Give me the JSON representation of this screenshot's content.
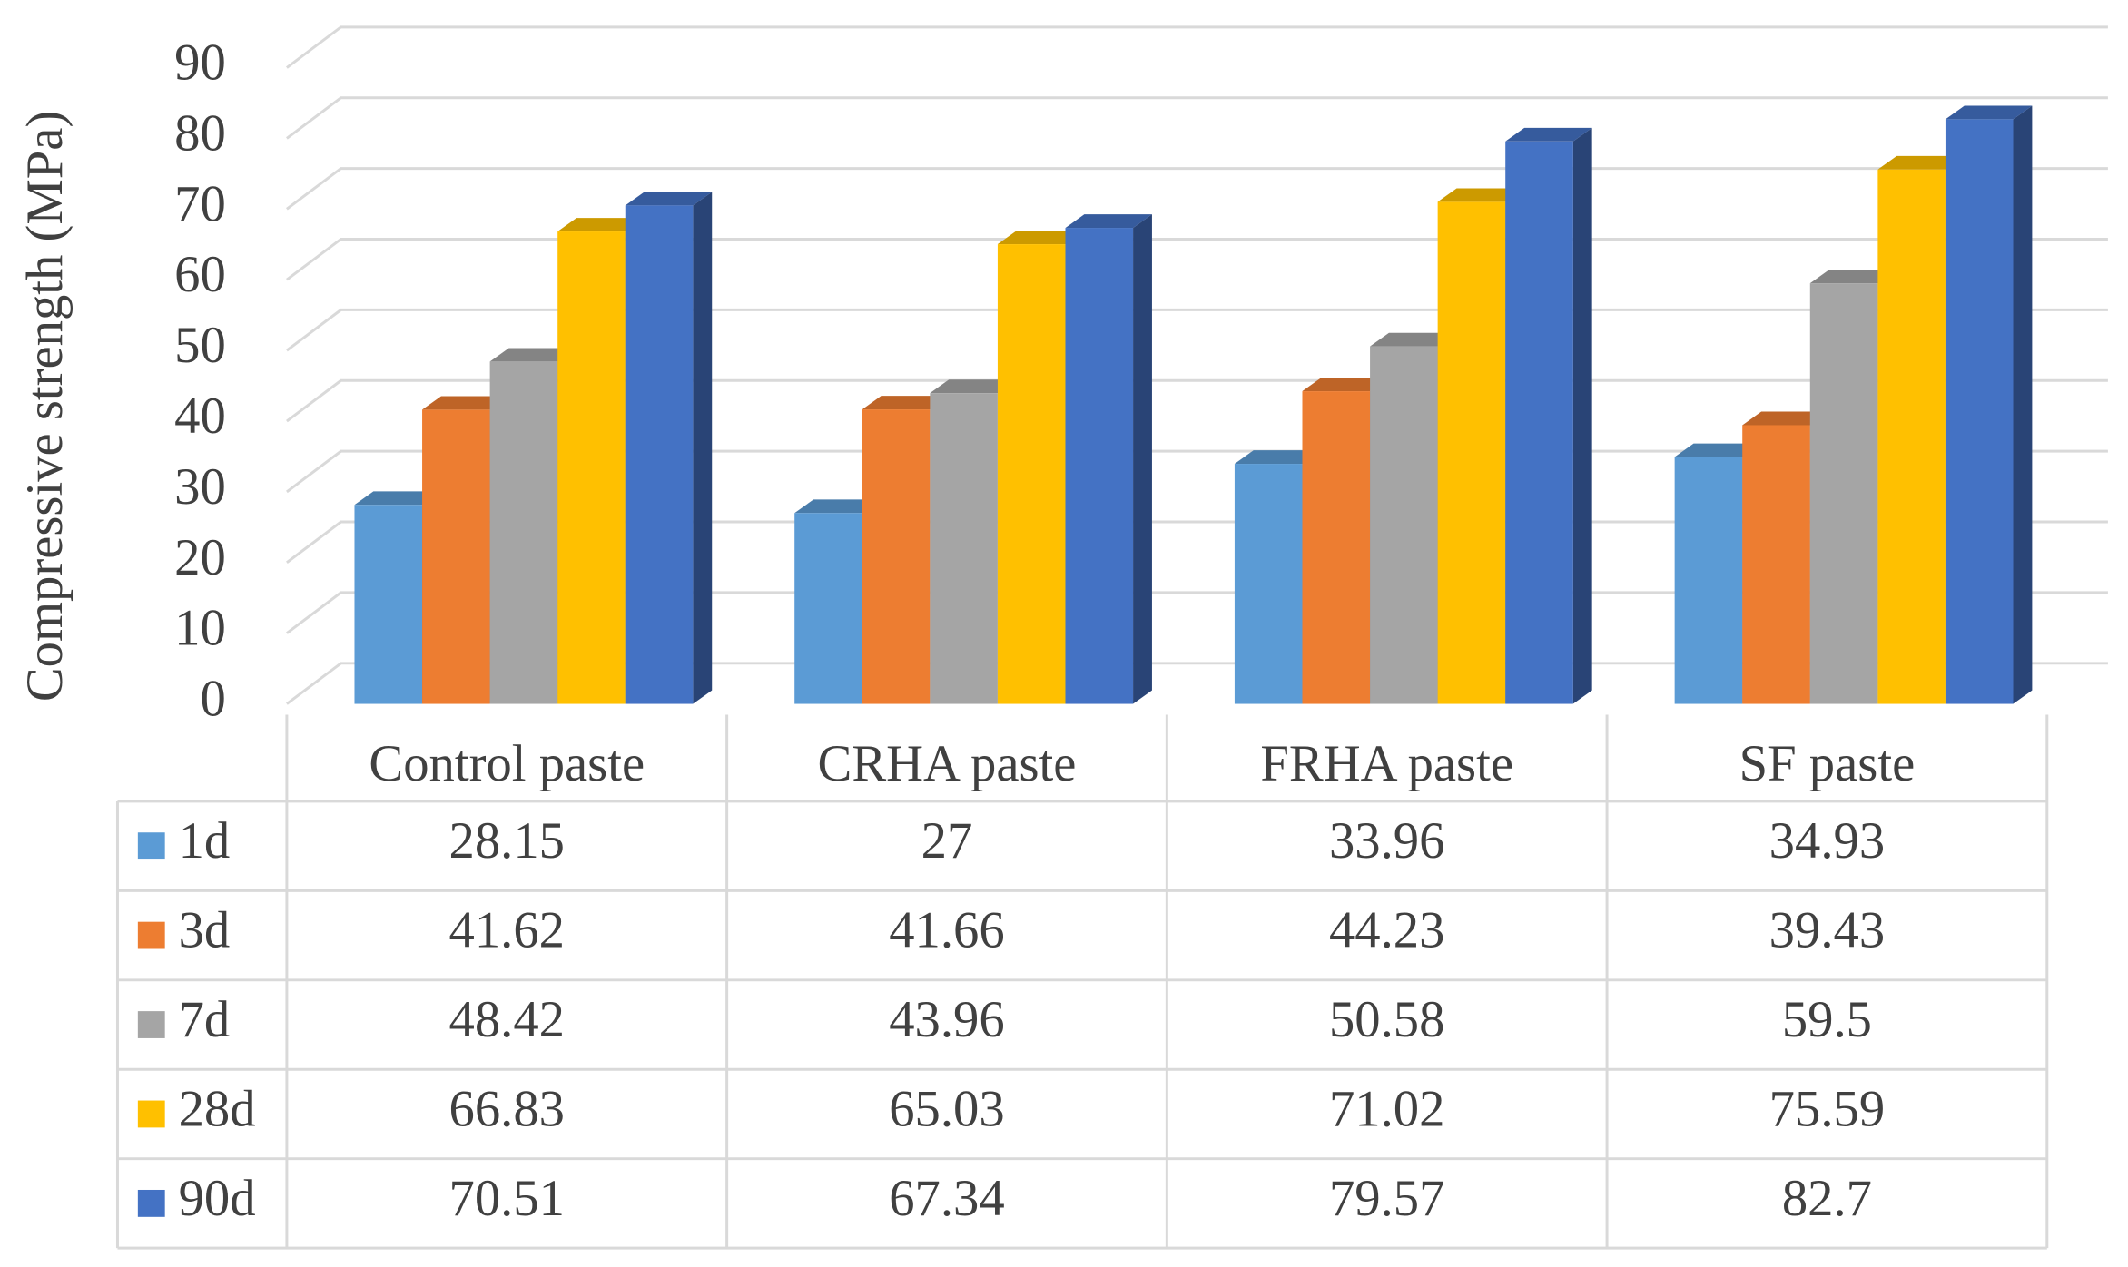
{
  "chart_data": {
    "type": "bar3d",
    "y_label": "Compressive strength (MPa)",
    "categories": [
      "Control paste",
      "CRHA paste",
      "FRHA paste",
      "SF paste"
    ],
    "series": [
      {
        "name": "1d",
        "color": "#5b9bd5",
        "values": [
          28.15,
          27,
          33.96,
          34.93
        ]
      },
      {
        "name": "3d",
        "color": "#ed7d31",
        "values": [
          41.62,
          41.66,
          44.23,
          39.43
        ]
      },
      {
        "name": "7d",
        "color": "#a5a5a5",
        "values": [
          48.42,
          43.96,
          50.58,
          59.5
        ]
      },
      {
        "name": "28d",
        "color": "#ffc000",
        "values": [
          66.83,
          65.03,
          71.02,
          75.59
        ]
      },
      {
        "name": "90d",
        "color": "#4472c4",
        "values": [
          70.51,
          67.34,
          79.57,
          82.7
        ]
      }
    ],
    "ylim": [
      0,
      90
    ],
    "yticks": [
      0,
      10,
      20,
      30,
      40,
      50,
      60,
      70,
      80,
      90
    ],
    "grid": true,
    "data_table": true
  }
}
